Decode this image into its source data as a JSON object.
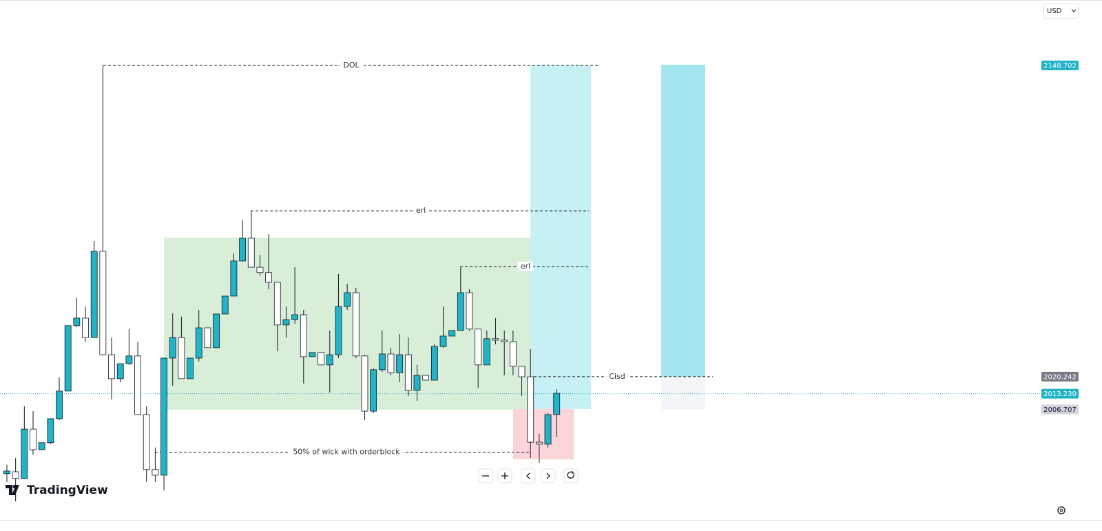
{
  "chart_data": {
    "type": "candlestick",
    "currency": "USD",
    "brand": "TradingView",
    "ylim": [
      1961.1,
      2175.7
    ],
    "up_color": "#22b3c6",
    "down_color": "#ffffff",
    "candles": {
      "open": [
        1980.2,
        1981.0,
        1978.2,
        1998.6,
        1990.1,
        1993.0,
        2002.9,
        2014.3,
        2041.3,
        2044.4,
        2036.4,
        2072.0,
        2029.3,
        2019.4,
        2025.6,
        2028.8,
        2004.6,
        1981.9,
        1979.6,
        2027.9,
        2036.4,
        2019.4,
        2027.9,
        2040.4,
        2032.2,
        2046.1,
        2053.5,
        2068.0,
        2077.4,
        2065.4,
        2063.2,
        2059.2,
        2041.6,
        2043.8,
        2045.8,
        2028.5,
        2030.2,
        2025.1,
        2029.3,
        2049.2,
        2054.9,
        2028.8,
        2006.0,
        2023.1,
        2029.6,
        2021.9,
        2029.3,
        2014.6,
        2020.8,
        2018.8,
        2032.7,
        2037.0,
        2039.3,
        2054.9,
        2039.9,
        2025.1,
        2035.9,
        2035.3,
        2034.7,
        2024.5,
        2020.2,
        1993.2,
        1992.4,
        2004.6
      ],
      "high": [
        1983.9,
        1986.7,
        2008.0,
        2006.0,
        1993.0,
        2002.9,
        2020.0,
        2041.3,
        2052.9,
        2049.2,
        2076.2,
        2148.7,
        2036.4,
        2025.6,
        2039.9,
        2034.5,
        2008.0,
        1991.0,
        2027.9,
        2046.4,
        2045.0,
        2027.9,
        2047.8,
        2040.4,
        2046.1,
        2053.5,
        2071.1,
        2084.8,
        2088.7,
        2070.5,
        2079.1,
        2059.2,
        2049.2,
        2065.4,
        2047.8,
        2030.2,
        2030.2,
        2039.3,
        2062.6,
        2058.6,
        2056.9,
        2029.3,
        2023.7,
        2039.3,
        2032.2,
        2037.9,
        2036.4,
        2025.1,
        2020.8,
        2033.6,
        2049.2,
        2039.3,
        2065.4,
        2056.3,
        2039.9,
        2039.3,
        2044.4,
        2039.3,
        2039.3,
        2024.5,
        2031.6,
        1996.7,
        2005.2,
        2015.1
      ],
      "low": [
        1976.8,
        1968.8,
        1978.2,
        1988.1,
        1990.1,
        1992.4,
        2002.3,
        2014.3,
        2040.7,
        2034.5,
        2036.4,
        2029.3,
        2010.9,
        2018.0,
        2025.1,
        2004.6,
        1976.8,
        1976.8,
        1973.3,
        2016.5,
        2019.4,
        2019.4,
        2026.5,
        2032.2,
        2032.2,
        2046.1,
        2053.5,
        2067.7,
        2065.4,
        2062.0,
        2056.3,
        2030.8,
        2036.4,
        2042.1,
        2017.4,
        2028.5,
        2025.1,
        2013.7,
        2027.9,
        2047.8,
        2027.9,
        2002.3,
        2005.2,
        2022.2,
        2020.8,
        2018.0,
        2012.3,
        2010.3,
        2018.8,
        2018.8,
        2032.2,
        2037.0,
        2039.3,
        2039.3,
        2015.7,
        2025.1,
        2033.6,
        2020.8,
        2020.8,
        2012.3,
        1986.7,
        1984.7,
        1991.0,
        1995.2
      ],
      "close": [
        1981.3,
        1978.2,
        1998.6,
        1990.1,
        1993.0,
        2002.9,
        2014.3,
        2041.3,
        2044.4,
        2036.4,
        2072.0,
        2029.3,
        2019.4,
        2025.6,
        2028.8,
        2004.6,
        1981.9,
        1979.6,
        2027.9,
        2036.4,
        2019.4,
        2027.9,
        2040.4,
        2032.2,
        2046.1,
        2053.5,
        2068.0,
        2077.4,
        2065.4,
        2063.2,
        2059.2,
        2041.6,
        2043.8,
        2045.8,
        2028.5,
        2030.2,
        2025.1,
        2029.3,
        2049.2,
        2054.9,
        2028.8,
        2006.0,
        2023.1,
        2029.6,
        2021.9,
        2029.3,
        2014.6,
        2020.8,
        2018.8,
        2032.7,
        2037.0,
        2039.3,
        2054.9,
        2039.9,
        2025.1,
        2035.9,
        2035.3,
        2034.7,
        2024.5,
        2020.2,
        1993.2,
        1992.4,
        2004.6,
        2013.4
      ]
    },
    "zones": [
      {
        "top": 2077.6,
        "bottom": 2006.6,
        "color": "#d8eed8"
      },
      {
        "top": 2148.7,
        "bottom": 2006.9,
        "color": "#c6f0f4"
      },
      {
        "top": 2006.9,
        "bottom": 1986.1,
        "color": "#fcd5da"
      },
      {
        "top": 2149.0,
        "bottom": 2020.242,
        "color": "#a3e6ed"
      },
      {
        "top": 2020.242,
        "bottom": 2006.707,
        "color": "#f3f5f8"
      }
    ],
    "levels": [
      {
        "label": "DOL",
        "value": 2148.702
      },
      {
        "label": "erl",
        "value": 2088.7
      },
      {
        "label": "erl",
        "value": 2065.7
      },
      {
        "label": "Cisd",
        "value": 2020.242
      },
      {
        "label": "50% of wick with orderblock",
        "value": 1989.1
      }
    ],
    "price_labels": [
      2148.702,
      2020.242,
      {
        "value": 2013.23,
        "label": "2013.230"
      },
      2006.707
    ],
    "price_label_colors": [
      "#22b3c6",
      "#787b86",
      "#22b3c6",
      "#d1d4dc"
    ]
  }
}
